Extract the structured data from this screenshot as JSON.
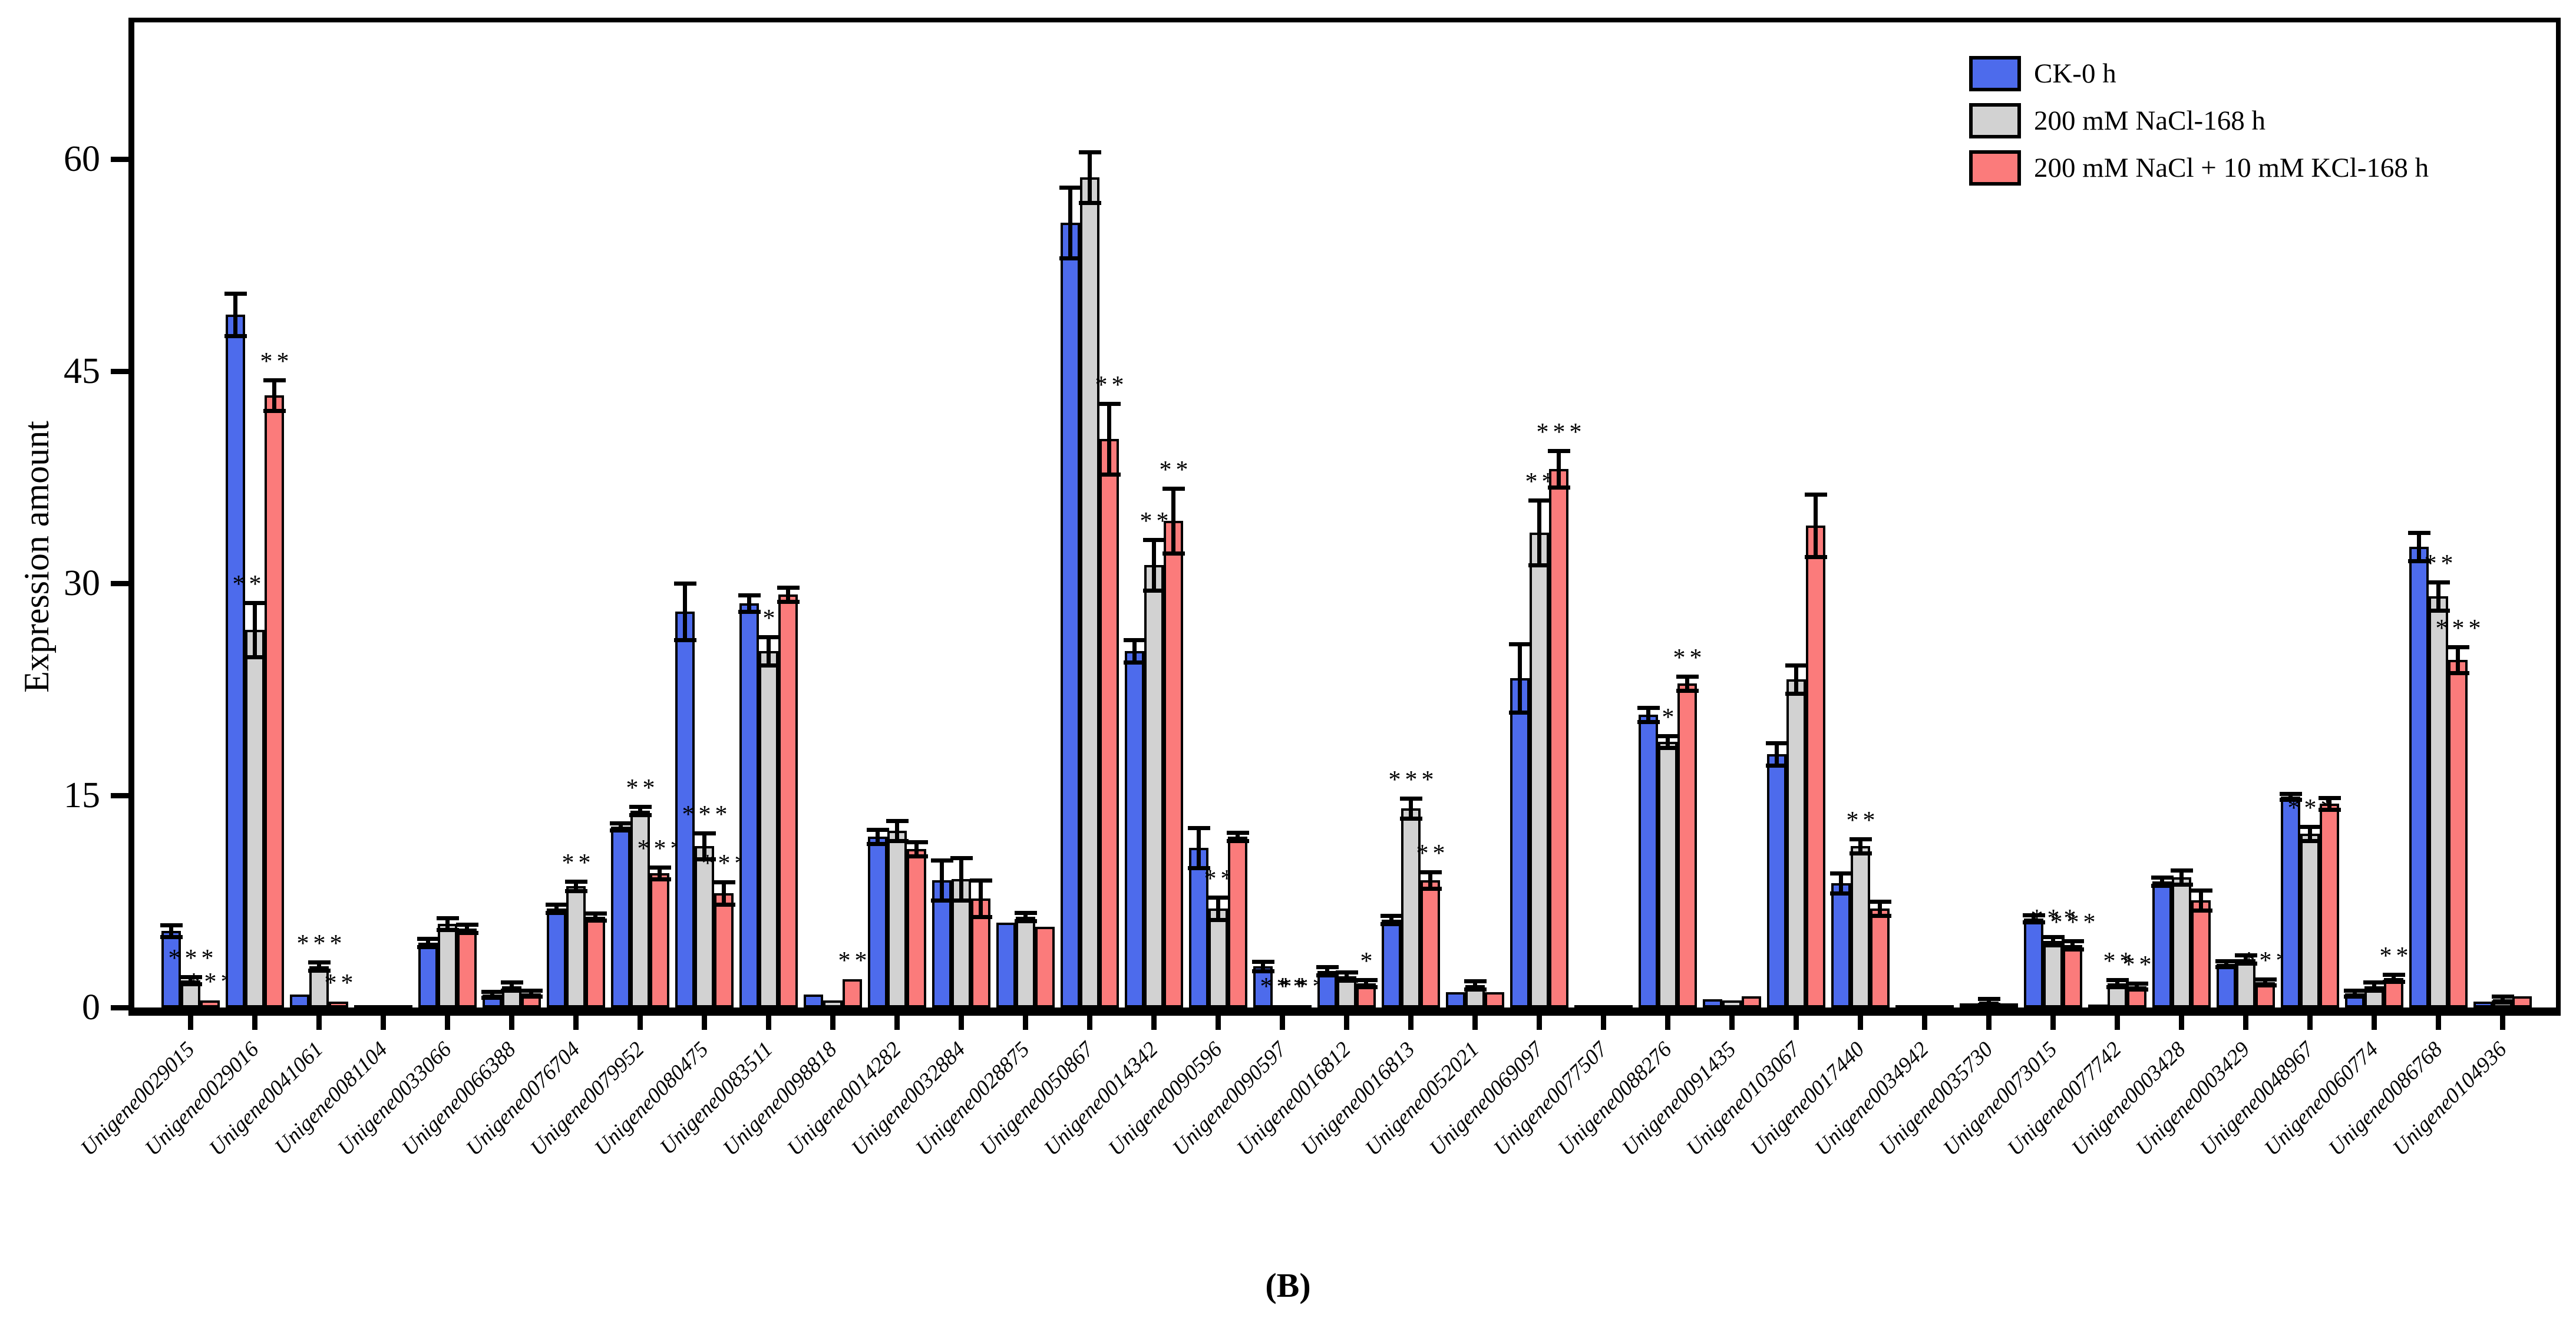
{
  "figure_label": "(B)",
  "axes": {
    "y_title": "Expression amount",
    "y_ticks": [
      0,
      15,
      30,
      45,
      60
    ]
  },
  "legend": [
    {
      "label": "CK-0 h",
      "color": "#4D6BEC"
    },
    {
      "label": "200 mM NaCl-168 h",
      "color": "#D2D2D2"
    },
    {
      "label": "200 mM NaCl + 10 mM KCl-168 h",
      "color": "#FB7B7B"
    }
  ],
  "chart_data": {
    "type": "bar",
    "title": "",
    "xlabel": "",
    "ylabel": "Expression amount",
    "ylim": [
      0,
      70
    ],
    "grid": false,
    "legend_position": "top-right",
    "categories": [
      "Unigene0029015",
      "Unigene0029016",
      "Unigene0041061",
      "Unigene0081104",
      "Unigene0033066",
      "Unigene0066388",
      "Unigene0076704",
      "Unigene0079952",
      "Unigene0080475",
      "Unigene0083511",
      "Unigene0098818",
      "Unigene0014282",
      "Unigene0032884",
      "Unigene0028875",
      "Unigene0050867",
      "Unigene0014342",
      "Unigene0090596",
      "Unigene0090597",
      "Unigene0016812",
      "Unigene0016813",
      "Unigene0052021",
      "Unigene0069097",
      "Unigene0077507",
      "Unigene0088276",
      "Unigene0091435",
      "Unigene0103067",
      "Unigene0017440",
      "Unigene0034942",
      "Unigene0035730",
      "Unigene0073015",
      "Unigene0077742",
      "Unigene0003428",
      "Unigene0003429",
      "Unigene0048967",
      "Unigene0060774",
      "Unigene0086768",
      "Unigene0104936"
    ],
    "series": [
      {
        "name": "CK-0 h",
        "color": "#4D6BEC",
        "values": [
          5.4,
          49.0,
          0.9,
          0.1,
          4.6,
          0.9,
          7.0,
          12.8,
          28.0,
          28.6,
          0.9,
          12.1,
          9.0,
          6.0,
          55.5,
          25.2,
          11.3,
          2.9,
          2.6,
          6.2,
          1.1,
          23.3,
          0.1,
          20.7,
          0.6,
          17.9,
          8.8,
          0.1,
          0.3,
          6.3,
          0.2,
          8.9,
          3.1,
          14.9,
          1.0,
          32.6,
          0.4
        ],
        "errors": [
          0.4,
          1.5,
          0.1,
          0.05,
          0.3,
          0.2,
          0.3,
          0.25,
          2.0,
          0.6,
          0.15,
          0.5,
          1.4,
          0.15,
          2.5,
          0.8,
          1.4,
          0.35,
          0.3,
          0.3,
          0.15,
          2.4,
          0.05,
          0.5,
          0.15,
          0.8,
          0.7,
          0.03,
          0.15,
          0.25,
          0.1,
          0.3,
          0.2,
          0.2,
          0.2,
          1.0,
          0.1
        ],
        "sig": [
          "",
          "",
          "",
          "",
          "",
          "",
          "",
          "",
          "",
          "",
          "",
          "",
          "",
          "",
          "",
          "",
          "",
          "",
          "",
          "",
          "",
          "",
          "",
          "",
          "",
          "",
          "",
          "",
          "",
          "",
          "",
          "",
          "",
          "",
          "",
          "",
          ""
        ]
      },
      {
        "name": "200 mM NaCl-168 h",
        "color": "#D2D2D2",
        "values": [
          1.9,
          26.7,
          2.9,
          0.1,
          5.9,
          1.5,
          8.6,
          13.9,
          11.4,
          25.2,
          0.5,
          12.5,
          9.1,
          6.4,
          58.7,
          31.3,
          7.0,
          0.1,
          2.2,
          14.1,
          1.6,
          33.6,
          0.15,
          18.8,
          0.5,
          23.2,
          11.4,
          0.1,
          0.4,
          4.7,
          1.7,
          9.2,
          3.4,
          12.3,
          1.5,
          29.1,
          0.6
        ],
        "errors": [
          0.25,
          1.9,
          0.3,
          0.05,
          0.4,
          0.3,
          0.35,
          0.3,
          0.9,
          1.0,
          0.1,
          0.7,
          1.5,
          0.3,
          1.8,
          1.8,
          0.8,
          0.05,
          0.3,
          0.7,
          0.3,
          2.3,
          0.08,
          0.4,
          0.15,
          1.0,
          0.5,
          0.05,
          0.2,
          0.3,
          0.25,
          0.5,
          0.3,
          0.5,
          0.3,
          1.0,
          0.2
        ],
        "sig": [
          "***",
          "***",
          "***",
          "",
          "",
          "",
          "**",
          "**",
          "***",
          "*",
          "",
          "",
          "",
          "",
          "",
          "**",
          "**",
          "***",
          "",
          "***",
          "",
          "**",
          "",
          "*",
          "",
          "",
          "**",
          "",
          "",
          "***",
          "**",
          "",
          "",
          "***",
          "",
          "**",
          ""
        ]
      },
      {
        "name": "200 mM NaCl + 10 mM KCl-168 h",
        "color": "#FB7B7B",
        "values": [
          0.5,
          43.3,
          0.4,
          0.1,
          5.6,
          1.0,
          6.4,
          9.5,
          8.1,
          29.2,
          2.0,
          11.2,
          7.7,
          5.7,
          40.2,
          34.4,
          12.1,
          0.1,
          1.7,
          9.0,
          1.1,
          38.1,
          0.1,
          22.9,
          0.8,
          34.1,
          7.0,
          0.1,
          0.3,
          4.4,
          1.5,
          7.6,
          1.8,
          14.4,
          2.1,
          24.6,
          0.8
        ],
        "errors": [
          0.1,
          1.1,
          0.1,
          0.05,
          0.3,
          0.2,
          0.25,
          0.4,
          0.8,
          0.5,
          0.15,
          0.5,
          1.3,
          0.15,
          2.5,
          2.3,
          0.3,
          0.05,
          0.25,
          0.6,
          0.15,
          1.3,
          0.05,
          0.5,
          0.1,
          2.2,
          0.5,
          0.03,
          0.1,
          0.3,
          0.2,
          0.7,
          0.2,
          0.4,
          0.25,
          0.9,
          0.1
        ],
        "sig": [
          "***",
          "**",
          "**",
          "",
          "",
          "",
          "",
          "***",
          "***",
          "",
          "**",
          "",
          "",
          "",
          "**",
          "**",
          "",
          "***",
          "*",
          "**",
          "",
          "***",
          "",
          "**",
          "",
          "",
          "",
          "",
          "",
          "***",
          "**",
          "",
          "***",
          "",
          "**",
          "***",
          ""
        ]
      }
    ]
  }
}
